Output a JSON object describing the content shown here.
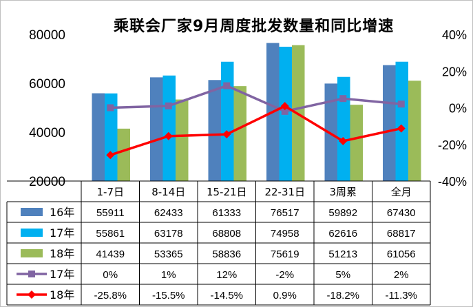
{
  "chart_data": {
    "type": "bar",
    "title": "乘联会厂家9月周度批发数量和同比增速",
    "categories": [
      "1-7日",
      "8-14日",
      "15-21日",
      "22-31日",
      "3周累",
      "全月"
    ],
    "y_left": {
      "ylim": [
        20000,
        80000
      ],
      "ticks": [
        "20000",
        "40000",
        "60000",
        "80000"
      ],
      "tick_values": [
        20000,
        40000,
        60000,
        80000
      ]
    },
    "y_right": {
      "ylim": [
        -40,
        40
      ],
      "ticks": [
        "-40%",
        "-20%",
        "0%",
        "20%",
        "40%"
      ],
      "tick_values": [
        -40,
        -20,
        0,
        20,
        40
      ]
    },
    "grid": false,
    "legend_placement": "data-table",
    "series": [
      {
        "name": "16年",
        "kind": "bar",
        "axis": "left",
        "color": "#4f81bd",
        "values": [
          55911,
          62433,
          61333,
          76517,
          59892,
          67430
        ],
        "labels": [
          "55911",
          "62433",
          "61333",
          "76517",
          "59892",
          "67430"
        ]
      },
      {
        "name": "17年",
        "kind": "bar",
        "axis": "left",
        "color": "#00b0f0",
        "values": [
          55861,
          63178,
          68808,
          74958,
          62616,
          68817
        ],
        "labels": [
          "55861",
          "63178",
          "68808",
          "74958",
          "62616",
          "68817"
        ]
      },
      {
        "name": "18年",
        "kind": "bar",
        "axis": "left",
        "color": "#9bbb59",
        "values": [
          41439,
          53365,
          58836,
          75619,
          51213,
          61056
        ],
        "labels": [
          "41439",
          "53365",
          "58836",
          "75619",
          "51213",
          "61056"
        ]
      },
      {
        "name": "17年",
        "kind": "line",
        "axis": "right",
        "color": "#8064a2",
        "marker": "square",
        "values": [
          0,
          1,
          12,
          -2,
          5,
          2
        ],
        "labels": [
          "0%",
          "1%",
          "12%",
          "-2%",
          "5%",
          "2%"
        ]
      },
      {
        "name": "18年",
        "kind": "line",
        "axis": "right",
        "color": "#ff0000",
        "marker": "diamond",
        "values": [
          -25.8,
          -15.5,
          -14.5,
          0.9,
          -18.2,
          -11.3
        ],
        "labels": [
          "-25.8%",
          "-15.5%",
          "-14.5%",
          "0.9%",
          "-18.2%",
          "-11.3%"
        ]
      }
    ]
  }
}
